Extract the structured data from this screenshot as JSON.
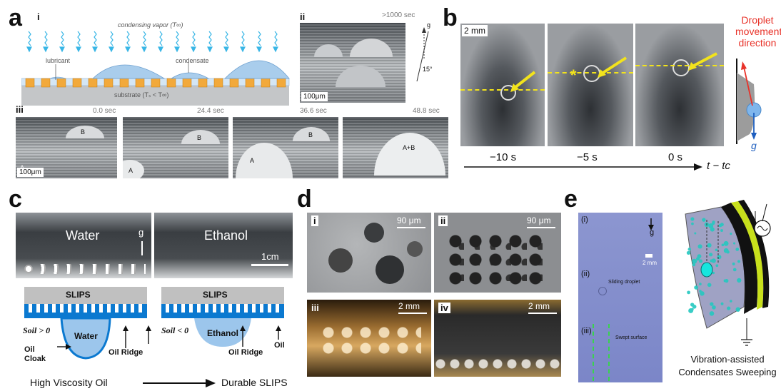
{
  "panels": {
    "a": {
      "letter": "a",
      "sub_i": "i",
      "sub_ii": "ii",
      "sub_iii": "iii",
      "vapor_label": "condensing vapor (T∞)",
      "lubricant_label": "lubricant",
      "condensate_label": "condensate",
      "substrate_label": "substrate (Tₛ < T∞)",
      "ii_time": ">1000 sec",
      "ii_scale": "100μm",
      "ii_angle": "15°",
      "ii_g": "g",
      "iii_times": [
        "0.0 sec",
        "24.4 sec",
        "36.6 sec",
        "48.8 sec"
      ],
      "iii_scale": "100μm",
      "iii_labels": [
        "A",
        "B",
        "A",
        "B",
        "A",
        "B",
        "A+B"
      ]
    },
    "b": {
      "letter": "b",
      "scale": "2 mm",
      "times": [
        "−10 s",
        "−5 s",
        "0 s"
      ],
      "axis_label": "t − tc",
      "movement_title": "Droplet movement direction",
      "g_label": "g",
      "star": "*"
    },
    "c": {
      "letter": "c",
      "water": "Water",
      "ethanol": "Ethanol",
      "g": "g",
      "scale": "1cm",
      "slips_left": "SLIPS",
      "slips_right": "SLIPS",
      "s_left": "Soil > 0",
      "s_right": "Soil < 0",
      "water_drop": "Water",
      "ethanol_drop": "Ethanol",
      "oil_cloak": "Oil Cloak",
      "oil_ridge_left": "Oil Ridge",
      "oil_ridge_right": "Oil Ridge",
      "oil": "Oil",
      "bottom_left": "High Viscosity Oil",
      "bottom_right": "Durable SLIPS"
    },
    "d": {
      "letter": "d",
      "sub": [
        "i",
        "ii",
        "iii",
        "iv"
      ],
      "scales": [
        "90 μm",
        "90 μm",
        "2 mm",
        "2 mm"
      ]
    },
    "e": {
      "letter": "e",
      "sub_i": "(i)",
      "sub_ii": "(ii)",
      "sub_iii": "(iii)",
      "g": "g",
      "scale": "2 mm",
      "sliding": "Sliding droplet",
      "swept": "Swept surface",
      "caption_line1": "Vibration-assisted",
      "caption_line2": "Condensates Sweeping"
    }
  },
  "colors": {
    "accent_red": "#e8332a",
    "accent_blue": "#1f5fbf",
    "lubricant_orange": "#f2a93b",
    "condensate_blue": "#a9cdec",
    "slips_blue": "#0b79d0",
    "arrow_yellow": "#f2e31c",
    "e_photo": "#7b86c8",
    "e_green": "#39d34e"
  }
}
